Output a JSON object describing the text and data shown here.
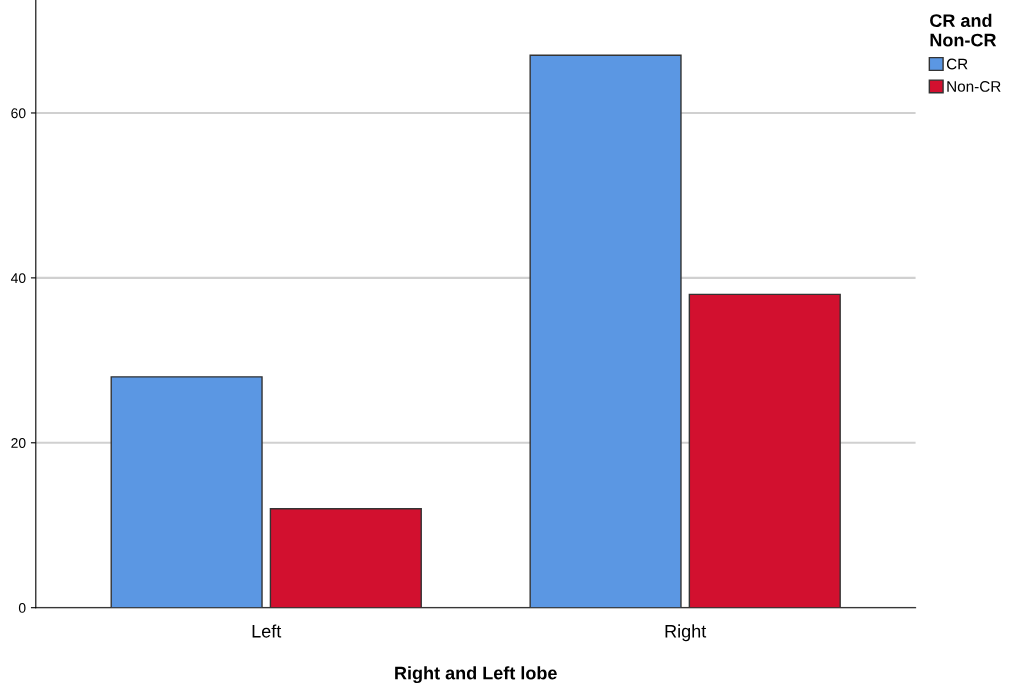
{
  "chart_data": {
    "type": "bar",
    "xlabel": "Right and Left lobe",
    "legend_title": "CR and\nNon-CR",
    "categories": [
      "Left",
      "Right"
    ],
    "series": [
      {
        "name": "CR",
        "color": "#5b97e3",
        "values": [
          28,
          67
        ]
      },
      {
        "name": "Non-CR",
        "color": "#d2102f",
        "values": [
          12,
          38
        ]
      }
    ],
    "ylim": [
      0,
      73.7
    ],
    "yticks": [
      0,
      20,
      40,
      60
    ],
    "grid": "y",
    "legend": "top right"
  }
}
